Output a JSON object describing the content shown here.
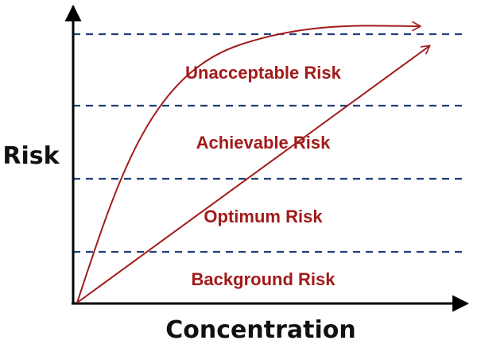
{
  "axes": {
    "y_label": "Risk",
    "x_label": "Concentration"
  },
  "zones": [
    {
      "label": "Unacceptable Risk"
    },
    {
      "label": "Achievable Risk"
    },
    {
      "label": "Optimum Risk"
    },
    {
      "label": "Background Risk"
    }
  ],
  "colors": {
    "axis": "#000000",
    "boundary_lines": "#1f3f7a",
    "curves_and_labels": "#a11b1b"
  }
}
